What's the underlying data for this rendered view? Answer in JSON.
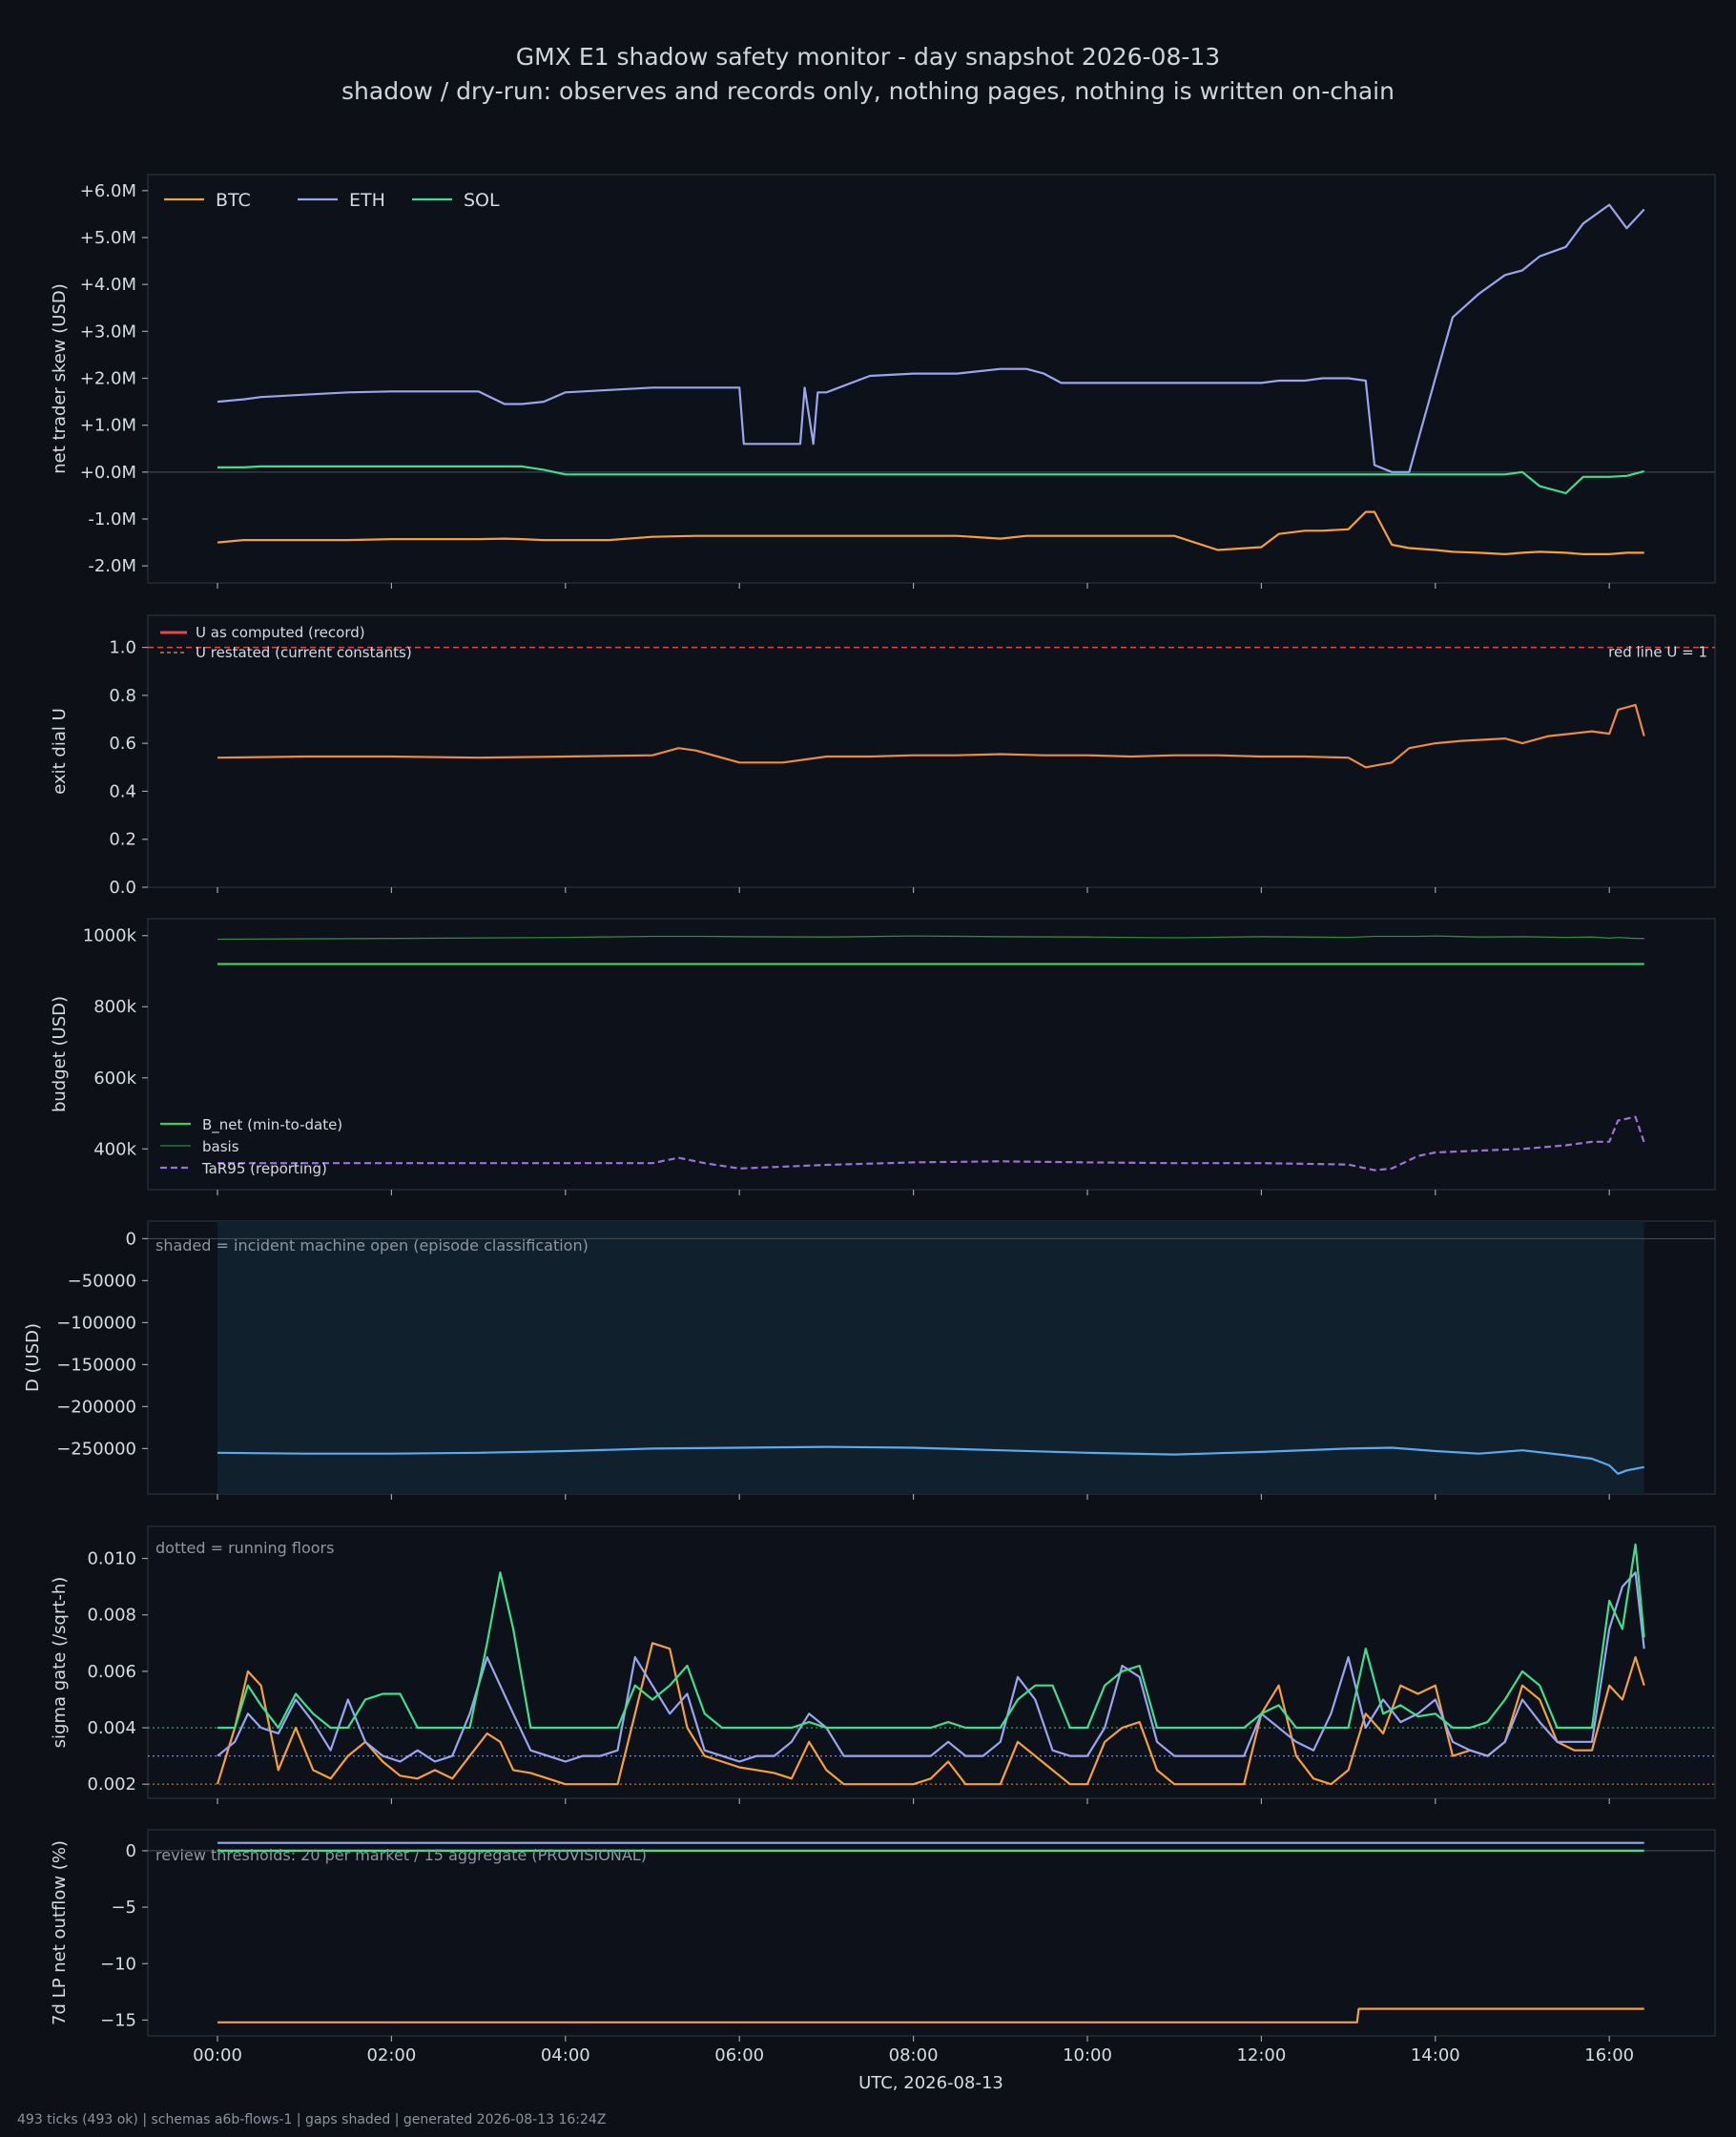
{
  "title": "GMX E1 shadow safety monitor - day snapshot 2026-08-13",
  "subtitle": "shadow / dry-run: observes and records only, nothing pages, nothing is written on-chain",
  "footer": "493 ticks (493 ok) | schemas a6b-flows-1 | gaps shaded | generated 2026-08-13 16:24Z",
  "xlabel": "UTC, 2026-08-13",
  "x_ticks": [
    "00:00",
    "02:00",
    "04:00",
    "06:00",
    "08:00",
    "10:00",
    "12:00",
    "14:00",
    "16:00"
  ],
  "colors": {
    "btc": "#f5a03a",
    "eth": "#9aa5f0",
    "sol": "#3ee08f",
    "u": "#f08a3c",
    "redline": "#e04a44",
    "bnet": "#3ecf5a",
    "basis": "#2f8a3a",
    "tar": "#a070d8",
    "d": "#5aaaf0",
    "shade": "#10202c"
  },
  "chart_data": [
    {
      "type": "line",
      "ylabel": "net trader skew (USD)",
      "y_ticks": [
        "+6.0M",
        "+5.0M",
        "+4.0M",
        "+3.0M",
        "+2.0M",
        "+1.0M",
        "+0.0M",
        "-1.0M",
        "-2.0M"
      ],
      "ylim": [
        -2.2,
        6.2
      ],
      "legend": "top-left",
      "x_hours": [
        0,
        0.3,
        0.5,
        1,
        1.5,
        2,
        2.5,
        2.55,
        3,
        3.3,
        3.5,
        3.75,
        4,
        4.5,
        5,
        5.5,
        6,
        6.05,
        6.3,
        6.7,
        6.75,
        6.85,
        6.9,
        7,
        7.5,
        8,
        8.5,
        9,
        9.3,
        9.5,
        9.7,
        10,
        10.5,
        11,
        11.5,
        12,
        12.2,
        12.5,
        12.7,
        13,
        13.2,
        13.3,
        13.5,
        13.7,
        14,
        14.2,
        14.5,
        14.8,
        15,
        15.2,
        15.5,
        15.7,
        16,
        16.2,
        16.4
      ],
      "series": [
        {
          "name": "BTC",
          "values": [
            -1.5,
            -1.45,
            -1.45,
            -1.45,
            -1.45,
            -1.43,
            -1.43,
            -1.43,
            -1.43,
            -1.42,
            -1.43,
            -1.45,
            -1.45,
            -1.45,
            -1.38,
            -1.36,
            -1.36,
            -1.36,
            -1.36,
            -1.36,
            -1.36,
            -1.36,
            -1.36,
            -1.36,
            -1.36,
            -1.36,
            -1.36,
            -1.42,
            -1.36,
            -1.36,
            -1.36,
            -1.36,
            -1.36,
            -1.36,
            -1.66,
            -1.6,
            -1.32,
            -1.25,
            -1.25,
            -1.22,
            -0.85,
            -0.85,
            -1.55,
            -1.62,
            -1.66,
            -1.7,
            -1.72,
            -1.75,
            -1.72,
            -1.7,
            -1.72,
            -1.75,
            -1.75,
            -1.72,
            -1.72
          ]
        },
        {
          "name": "ETH",
          "values": [
            1.5,
            1.55,
            1.6,
            1.65,
            1.7,
            1.72,
            1.72,
            1.72,
            1.72,
            1.45,
            1.45,
            1.5,
            1.7,
            1.75,
            1.8,
            1.8,
            1.8,
            0.6,
            0.6,
            0.6,
            1.8,
            0.6,
            1.7,
            1.7,
            2.05,
            2.1,
            2.1,
            2.2,
            2.2,
            2.1,
            1.9,
            1.9,
            1.9,
            1.9,
            1.9,
            1.9,
            1.95,
            1.95,
            2.0,
            2.0,
            1.95,
            0.15,
            0.0,
            0.0,
            2.0,
            3.3,
            3.8,
            4.2,
            4.3,
            4.6,
            4.8,
            5.3,
            5.7,
            5.2,
            5.6
          ]
        },
        {
          "name": "SOL",
          "values": [
            0.1,
            0.1,
            0.12,
            0.12,
            0.12,
            0.12,
            0.12,
            0.12,
            0.12,
            0.12,
            0.12,
            0.05,
            -0.05,
            -0.05,
            -0.05,
            -0.05,
            -0.05,
            -0.05,
            -0.05,
            -0.05,
            -0.05,
            -0.05,
            -0.05,
            -0.05,
            -0.05,
            -0.05,
            -0.05,
            -0.05,
            -0.05,
            -0.05,
            -0.05,
            -0.05,
            -0.05,
            -0.05,
            -0.05,
            -0.05,
            -0.05,
            -0.05,
            -0.05,
            -0.05,
            -0.05,
            -0.05,
            -0.05,
            -0.05,
            -0.05,
            -0.05,
            -0.05,
            -0.05,
            0.0,
            -0.3,
            -0.45,
            -0.1,
            -0.1,
            -0.08,
            0.02
          ]
        }
      ]
    },
    {
      "type": "line",
      "ylabel": "exit dial U",
      "y_ticks": [
        "1.0",
        "0.8",
        "0.6",
        "0.4",
        "0.2",
        "0.0"
      ],
      "ylim": [
        0,
        1.05
      ],
      "legend": "top-left",
      "legend_entries": [
        "U as computed (record)",
        "U restated (current constants)"
      ],
      "annotation": "red line U = 1",
      "x_hours": [
        0,
        1,
        2,
        3,
        4,
        5,
        5.3,
        5.5,
        6,
        6.5,
        7,
        7.5,
        8,
        8.5,
        9,
        9.5,
        10,
        10.5,
        11,
        11.5,
        12,
        12.5,
        13,
        13.2,
        13.5,
        13.7,
        14,
        14.3,
        14.8,
        15,
        15.3,
        15.8,
        16,
        16.1,
        16.3,
        16.4
      ],
      "series": [
        {
          "name": "U as computed (record)",
          "values": [
            0.54,
            0.545,
            0.545,
            0.54,
            0.545,
            0.55,
            0.58,
            0.57,
            0.52,
            0.52,
            0.545,
            0.545,
            0.55,
            0.55,
            0.555,
            0.55,
            0.55,
            0.545,
            0.55,
            0.55,
            0.545,
            0.545,
            0.54,
            0.5,
            0.52,
            0.58,
            0.6,
            0.61,
            0.62,
            0.6,
            0.63,
            0.65,
            0.64,
            0.74,
            0.76,
            0.63
          ]
        }
      ]
    },
    {
      "type": "line",
      "ylabel": "budget (USD)",
      "y_ticks": [
        "1000k",
        "800k",
        "600k",
        "400k"
      ],
      "ylim": [
        390000,
        1010000
      ],
      "legend": "bottom-left",
      "x_hours": [
        0,
        2,
        4,
        5,
        5.3,
        5.6,
        6,
        7,
        8,
        9,
        10,
        11,
        12,
        12.5,
        13,
        13.3,
        13.5,
        13.8,
        14,
        14.5,
        15,
        15.5,
        15.8,
        16,
        16.1,
        16.3,
        16.4
      ],
      "series": [
        {
          "name": "B_net (min-to-date)",
          "values": [
            920000,
            920000,
            920000,
            920000,
            920000,
            920000,
            920000,
            920000,
            920000,
            920000,
            920000,
            920000,
            920000,
            920000,
            920000,
            920000,
            920000,
            920000,
            920000,
            920000,
            920000,
            920000,
            920000,
            920000,
            920000,
            920000,
            920000
          ]
        },
        {
          "name": "basis",
          "values": [
            990000,
            992000,
            995000,
            998000,
            998000,
            998000,
            997000,
            996000,
            999000,
            997000,
            996000,
            994000,
            997000,
            996000,
            995000,
            998000,
            998000,
            998000,
            999000,
            996000,
            997000,
            995000,
            996000,
            993000,
            995000,
            992000,
            992000
          ]
        },
        {
          "name": "TaR95 (reporting)",
          "values": [
            360000,
            360000,
            360000,
            360000,
            375000,
            360000,
            345000,
            355000,
            362000,
            365000,
            362000,
            360000,
            360000,
            358000,
            356000,
            340000,
            345000,
            380000,
            390000,
            395000,
            400000,
            410000,
            420000,
            420000,
            480000,
            490000,
            418000
          ]
        }
      ]
    },
    {
      "type": "area",
      "ylabel": "D (USD)",
      "y_ticks": [
        "0",
        "−50000",
        "−100000",
        "−150000",
        "−200000",
        "−250000"
      ],
      "ylim": [
        -295000,
        5000
      ],
      "annotation": "shaded = incident machine open (episode classification)",
      "shaded_hours": [
        0,
        16.4
      ],
      "x_hours": [
        0,
        1,
        2,
        3,
        4,
        5,
        6,
        7,
        8,
        9,
        10,
        11,
        12,
        13,
        13.5,
        14,
        14.5,
        15,
        15.5,
        15.8,
        16,
        16.1,
        16.2,
        16.4
      ],
      "series": [
        {
          "name": "D",
          "values": [
            -255000,
            -256000,
            -256000,
            -255000,
            -253000,
            -250000,
            -249000,
            -248000,
            -249000,
            -252000,
            -255000,
            -257000,
            -254000,
            -250000,
            -249000,
            -253000,
            -256000,
            -252000,
            -258000,
            -262000,
            -270000,
            -280000,
            -276000,
            -272000
          ]
        }
      ]
    },
    {
      "type": "line",
      "ylabel": "sigma gate (/sqrt-h)",
      "y_ticks": [
        "0.010",
        "0.008",
        "0.006",
        "0.004",
        "0.002"
      ],
      "ylim": [
        0.0015,
        0.0111
      ],
      "annotation": "dotted = running floors",
      "floors": {
        "BTC": 0.002,
        "ETH": 0.003,
        "SOL": 0.004
      },
      "x_hours": [
        0,
        0.2,
        0.35,
        0.5,
        0.7,
        0.9,
        1.1,
        1.3,
        1.5,
        1.7,
        1.9,
        2.1,
        2.3,
        2.5,
        2.7,
        2.9,
        3.1,
        3.25,
        3.4,
        3.6,
        3.8,
        4.0,
        4.2,
        4.4,
        4.6,
        4.8,
        5.0,
        5.2,
        5.4,
        5.6,
        5.8,
        6.0,
        6.2,
        6.4,
        6.6,
        6.8,
        7.0,
        7.2,
        7.4,
        7.6,
        7.8,
        8.0,
        8.2,
        8.4,
        8.6,
        8.8,
        9.0,
        9.2,
        9.4,
        9.6,
        9.8,
        10.0,
        10.2,
        10.4,
        10.6,
        10.8,
        11.0,
        11.2,
        11.4,
        11.6,
        11.8,
        12.0,
        12.2,
        12.4,
        12.6,
        12.8,
        13.0,
        13.2,
        13.4,
        13.6,
        13.8,
        14.0,
        14.2,
        14.4,
        14.6,
        14.8,
        15.0,
        15.2,
        15.4,
        15.6,
        15.8,
        16.0,
        16.15,
        16.3,
        16.4
      ],
      "series": [
        {
          "name": "BTC",
          "values": [
            0.002,
            0.004,
            0.006,
            0.0055,
            0.0025,
            0.004,
            0.0025,
            0.0022,
            0.003,
            0.0035,
            0.0028,
            0.0023,
            0.0022,
            0.0025,
            0.0022,
            0.003,
            0.0038,
            0.0035,
            0.0025,
            0.0024,
            0.0022,
            0.002,
            0.002,
            0.002,
            0.002,
            0.0045,
            0.007,
            0.0068,
            0.004,
            0.003,
            0.0028,
            0.0026,
            0.0025,
            0.0024,
            0.0022,
            0.0035,
            0.0025,
            0.002,
            0.002,
            0.002,
            0.002,
            0.002,
            0.0022,
            0.0028,
            0.002,
            0.002,
            0.002,
            0.0035,
            0.003,
            0.0025,
            0.002,
            0.002,
            0.0035,
            0.004,
            0.0042,
            0.0025,
            0.002,
            0.002,
            0.002,
            0.002,
            0.002,
            0.0045,
            0.0055,
            0.003,
            0.0022,
            0.002,
            0.0025,
            0.0045,
            0.0038,
            0.0055,
            0.0052,
            0.0055,
            0.003,
            0.0032,
            0.003,
            0.0035,
            0.0055,
            0.005,
            0.0035,
            0.0032,
            0.0032,
            0.0055,
            0.005,
            0.0065,
            0.0055
          ]
        },
        {
          "name": "ETH",
          "values": [
            0.003,
            0.0035,
            0.0045,
            0.004,
            0.0038,
            0.005,
            0.0042,
            0.0032,
            0.005,
            0.0035,
            0.003,
            0.0028,
            0.0032,
            0.0028,
            0.003,
            0.0045,
            0.0065,
            0.0055,
            0.0045,
            0.0032,
            0.003,
            0.0028,
            0.003,
            0.003,
            0.0032,
            0.0065,
            0.0055,
            0.0045,
            0.0052,
            0.0032,
            0.003,
            0.0028,
            0.003,
            0.003,
            0.0035,
            0.0045,
            0.004,
            0.003,
            0.003,
            0.003,
            0.003,
            0.003,
            0.003,
            0.0035,
            0.003,
            0.003,
            0.0035,
            0.0058,
            0.005,
            0.0032,
            0.003,
            0.003,
            0.004,
            0.0062,
            0.0058,
            0.0035,
            0.003,
            0.003,
            0.003,
            0.003,
            0.003,
            0.0045,
            0.004,
            0.0035,
            0.0032,
            0.0045,
            0.0065,
            0.004,
            0.005,
            0.0042,
            0.0045,
            0.005,
            0.0035,
            0.0032,
            0.003,
            0.0035,
            0.005,
            0.0042,
            0.0035,
            0.0035,
            0.0035,
            0.0075,
            0.009,
            0.0095,
            0.0068
          ]
        },
        {
          "name": "SOL",
          "values": [
            0.004,
            0.004,
            0.0055,
            0.0048,
            0.004,
            0.0052,
            0.0045,
            0.004,
            0.004,
            0.005,
            0.0052,
            0.0052,
            0.004,
            0.004,
            0.004,
            0.004,
            0.007,
            0.0095,
            0.0075,
            0.004,
            0.004,
            0.004,
            0.004,
            0.004,
            0.004,
            0.0055,
            0.005,
            0.0055,
            0.0062,
            0.0045,
            0.004,
            0.004,
            0.004,
            0.004,
            0.004,
            0.0042,
            0.004,
            0.004,
            0.004,
            0.004,
            0.004,
            0.004,
            0.004,
            0.0042,
            0.004,
            0.004,
            0.004,
            0.005,
            0.0055,
            0.0055,
            0.004,
            0.004,
            0.0055,
            0.006,
            0.0062,
            0.004,
            0.004,
            0.004,
            0.004,
            0.004,
            0.004,
            0.0045,
            0.0048,
            0.004,
            0.004,
            0.004,
            0.004,
            0.0068,
            0.0045,
            0.0048,
            0.0044,
            0.0045,
            0.004,
            0.004,
            0.0042,
            0.005,
            0.006,
            0.0055,
            0.004,
            0.004,
            0.004,
            0.0085,
            0.0075,
            0.0105,
            0.0072
          ]
        }
      ]
    },
    {
      "type": "line",
      "ylabel": "7d LP net outflow (%)",
      "y_ticks": [
        "0",
        "−5",
        "−10",
        "−15"
      ],
      "ylim": [
        -16.4,
        1.6
      ],
      "annotation": "review thresholds: 20 per market / 15 aggregate (PROVISIONAL)",
      "x_hours": [
        0,
        13.1,
        13.12,
        16.4
      ],
      "series": [
        {
          "name": "BTC",
          "values": [
            -15.2,
            -15.2,
            -14.0,
            -14.0
          ]
        },
        {
          "name": "ETH",
          "values": [
            0.7,
            0.7,
            0.7,
            0.7
          ]
        },
        {
          "name": "SOL",
          "values": [
            0.0,
            0.0,
            0.0,
            0.0
          ]
        }
      ]
    }
  ]
}
